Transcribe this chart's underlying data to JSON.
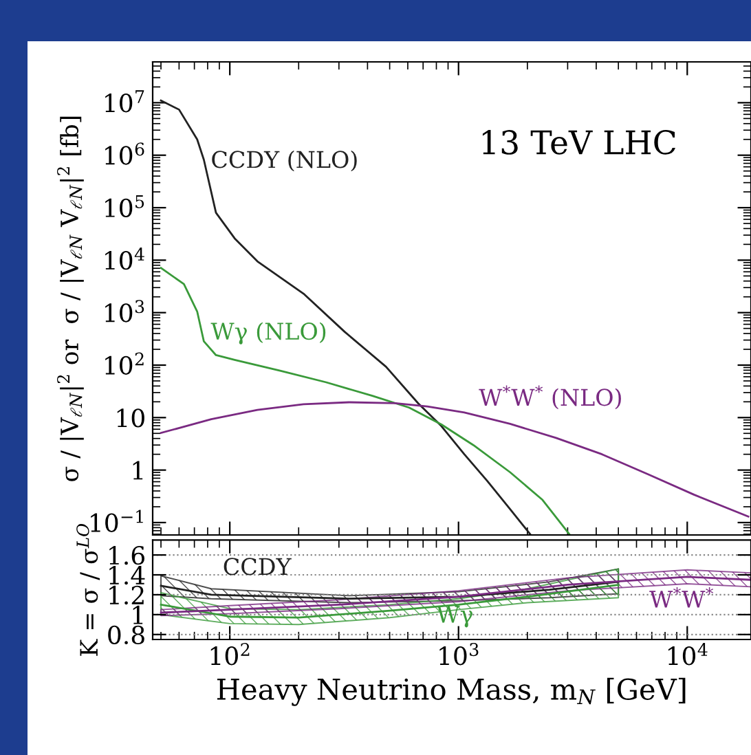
{
  "chart_data": [
    {
      "type": "line",
      "log": "xy",
      "ylabel": "σ / |V$_{ℓN}$|$^{2}$ or  σ / |V$_{ℓN}$ V$_{ℓN}$|$^{2}$ [fb]",
      "annotations": [
        "13 TeV LHC"
      ],
      "tick_labels": "y",
      "xlim": [
        46,
        19000
      ],
      "ylim": [
        0.058,
        60000000.0
      ],
      "yticks": [
        {
          "value": 0.1,
          "label": "10$^{−1}$"
        },
        1,
        10,
        {
          "value": 100,
          "label": "10$^{2}$"
        },
        {
          "value": 1000,
          "label": "10$^{3}$"
        },
        {
          "value": 10000,
          "label": "10$^{4}$"
        },
        {
          "value": 100000,
          "label": "10$^{5}$"
        },
        {
          "value": 1000000,
          "label": "10$^{6}$"
        },
        {
          "value": 10000000,
          "label": "10$^{7}$"
        }
      ],
      "xticks": [
        {
          "value": 100,
          "label": null
        },
        {
          "value": 1000,
          "label": null
        },
        {
          "value": 10000,
          "label": null
        }
      ],
      "series": [
        {
          "name": "CCDY (NLO)",
          "color": "#222222",
          "x": [
            50,
            60,
            72,
            77,
            87,
            105,
            132,
            210,
            318,
            482,
            667,
            841,
            1060,
            1335,
            1680,
            2070
          ],
          "values": [
            11000000.0,
            7400000.0,
            2000000.0,
            820000.0,
            80000.0,
            26000.0,
            9500,
            2300,
            430,
            93,
            18.6,
            6.9,
            2.0,
            0.62,
            0.18,
            0.058
          ]
        },
        {
          "name": "Wγ (NLO)",
          "color": "#3a9a3a",
          "x": [
            50,
            63,
            72,
            77,
            87,
            105,
            166,
            264,
            420,
            608,
            841,
            1160,
            1680,
            2330,
            3070
          ],
          "values": [
            7100,
            3500,
            1050,
            284,
            155,
            126,
            78,
            47,
            26,
            15.5,
            7.4,
            3.0,
            0.91,
            0.27,
            0.058
          ]
        },
        {
          "name": "W$^{*}$W$^{*}$ (NLO)",
          "color": "#7a2a82",
          "x": [
            50,
            83,
            132,
            210,
            333,
            529,
            731,
            1060,
            1680,
            2670,
            4240,
            6740,
            10700,
            18500
          ],
          "values": [
            5.1,
            9.3,
            14,
            18,
            19.6,
            18.8,
            16.3,
            12.5,
            7.6,
            4.1,
            2.0,
            0.83,
            0.34,
            0.13
          ]
        }
      ]
    },
    {
      "type": "line",
      "log": "x",
      "ylabel": "K = σ / σ$^{LO}$",
      "xlabel": "Heavy Neutrino Mass, m$_{N}$ [GeV]",
      "grid": "y",
      "xlim": [
        46,
        19000
      ],
      "ylim": [
        0.75,
        1.75
      ],
      "yticks": [
        0.8,
        1,
        1.2,
        1.4,
        1.6
      ],
      "xticks": [
        {
          "value": 100,
          "label": "10$^{2}$"
        },
        {
          "value": 1000,
          "label": "10$^{3}$"
        },
        {
          "value": 10000,
          "label": "10$^{4}$"
        }
      ],
      "series": [
        {
          "name": "CCDY",
          "color": "#222222",
          "x": [
            50,
            83,
            333,
            1000,
            2500,
            5000
          ],
          "values": [
            1.29,
            1.2,
            1.16,
            1.18,
            1.25,
            1.33
          ],
          "lower": [
            1.19,
            1.16,
            1.12,
            1.14,
            1.17,
            1.21
          ],
          "upper": [
            1.39,
            1.26,
            1.19,
            1.23,
            1.33,
            1.46
          ]
        },
        {
          "name": "Wγ",
          "color": "#3a9a3a",
          "x": [
            50,
            100,
            200,
            500,
            1000,
            2000,
            5000
          ],
          "values": [
            1.1,
            0.98,
            0.97,
            1.04,
            1.1,
            1.18,
            1.3
          ],
          "lower": [
            1.0,
            0.91,
            0.9,
            0.97,
            1.05,
            1.12,
            1.17
          ],
          "upper": [
            1.22,
            1.06,
            1.05,
            1.1,
            1.16,
            1.26,
            1.46
          ]
        },
        {
          "name": "W$^{*}$W$^{*}$",
          "color": "#7a2a82",
          "x": [
            50,
            100,
            300,
            1000,
            3000,
            10000,
            19000
          ],
          "values": [
            1.02,
            1.05,
            1.1,
            1.18,
            1.3,
            1.38,
            1.35
          ],
          "lower": [
            0.99,
            1.01,
            1.06,
            1.13,
            1.24,
            1.31,
            1.28
          ],
          "upper": [
            1.05,
            1.09,
            1.15,
            1.24,
            1.37,
            1.45,
            1.42
          ]
        }
      ]
    }
  ]
}
